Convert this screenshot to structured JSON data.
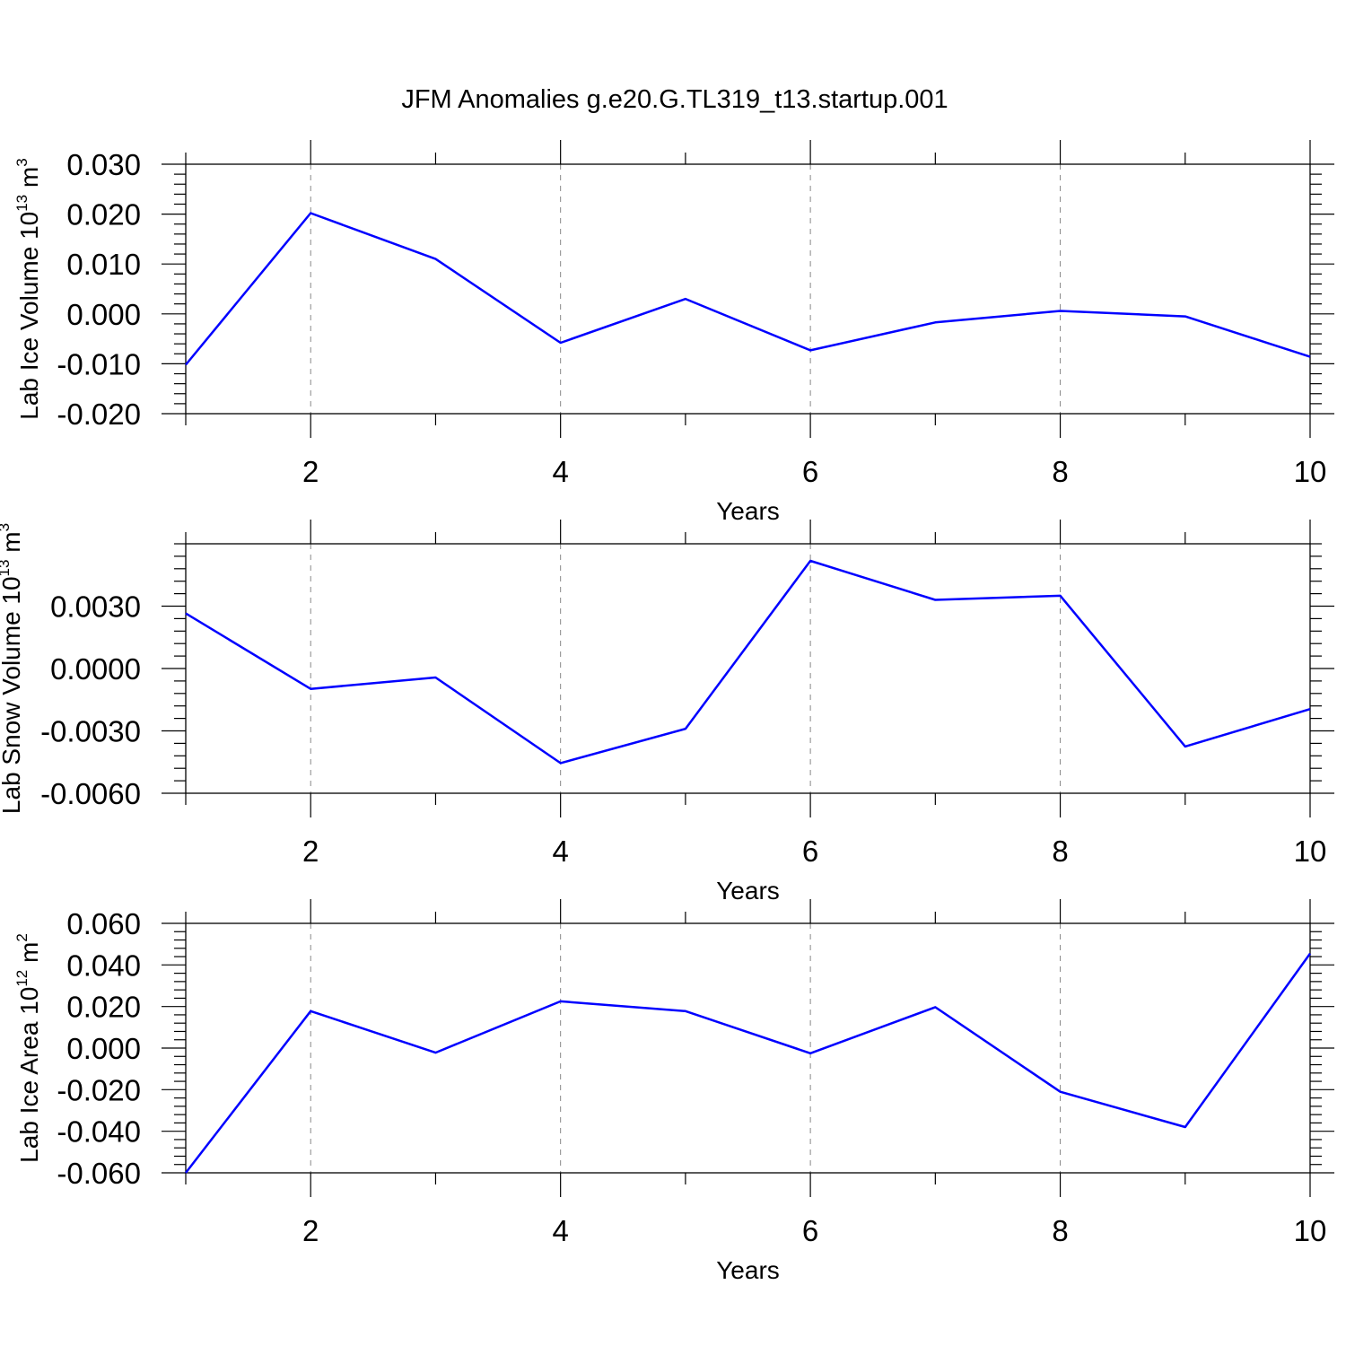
{
  "title": "JFM Anomalies g.e20.G.TL319_t13.startup.001",
  "series_color": "#0000ff",
  "chart_data": [
    {
      "type": "line",
      "xlabel": "Years",
      "ylabel": {
        "text": "Lab Ice Volume 10",
        "exp": "13",
        "unit": " m",
        "unit_exp": "3"
      },
      "xlim": [
        1,
        10
      ],
      "ylim": [
        -0.02,
        0.03
      ],
      "x_major_ticks": [
        2,
        4,
        6,
        8,
        10
      ],
      "x_tick_labels": [
        "2",
        "4",
        "6",
        "8",
        "10"
      ],
      "y_major_ticks": [
        -0.02,
        -0.01,
        0.0,
        0.01,
        0.02,
        0.03
      ],
      "y_tick_labels": [
        "-0.020",
        "-0.010",
        "0.000",
        "0.010",
        "0.020",
        "0.030"
      ],
      "grid": "vertical dashed at major x ticks",
      "x": [
        1,
        2,
        3,
        4,
        5,
        6,
        7,
        8,
        9,
        10
      ],
      "y": [
        -0.0102,
        0.0202,
        0.011,
        -0.0058,
        0.003,
        -0.0073,
        -0.0017,
        0.0006,
        -0.0005,
        -0.0086
      ]
    },
    {
      "type": "line",
      "xlabel": "Years",
      "ylabel": {
        "text": "Lab Snow Volume 10",
        "exp": "13",
        "unit": " m",
        "unit_exp": "3"
      },
      "xlim": [
        1,
        10
      ],
      "ylim": [
        -0.006,
        0.006
      ],
      "x_major_ticks": [
        2,
        4,
        6,
        8,
        10
      ],
      "x_tick_labels": [
        "2",
        "4",
        "6",
        "8",
        "10"
      ],
      "y_major_ticks": [
        -0.006,
        -0.003,
        0.0,
        0.003
      ],
      "y_tick_labels": [
        "-0.0060",
        "-0.0030",
        "0.0000",
        "0.0030"
      ],
      "grid": "vertical dashed at major x ticks",
      "x": [
        1,
        2,
        3,
        4,
        5,
        6,
        7,
        8,
        9,
        10
      ],
      "y": [
        0.00265,
        -0.00098,
        -0.00043,
        -0.00455,
        -0.0029,
        0.00518,
        0.0033,
        0.0035,
        -0.00375,
        -0.00195
      ]
    },
    {
      "type": "line",
      "xlabel": "Years",
      "ylabel": {
        "text": "Lab Ice Area 10",
        "exp": "12",
        "unit": " m",
        "unit_exp": "2"
      },
      "xlim": [
        1,
        10
      ],
      "ylim": [
        -0.06,
        0.06
      ],
      "x_major_ticks": [
        2,
        4,
        6,
        8,
        10
      ],
      "x_tick_labels": [
        "2",
        "4",
        "6",
        "8",
        "10"
      ],
      "y_major_ticks": [
        -0.06,
        -0.04,
        -0.02,
        0.0,
        0.02,
        0.04,
        0.06
      ],
      "y_tick_labels": [
        "-0.060",
        "-0.040",
        "-0.020",
        "0.000",
        "0.020",
        "0.040",
        "0.060"
      ],
      "grid": "vertical dashed at major x ticks",
      "x": [
        1,
        2,
        3,
        4,
        5,
        6,
        7,
        8,
        9,
        10
      ],
      "y": [
        -0.06,
        0.0178,
        -0.0022,
        0.0225,
        0.0178,
        -0.0025,
        0.0197,
        -0.021,
        -0.038,
        0.0455
      ]
    }
  ]
}
